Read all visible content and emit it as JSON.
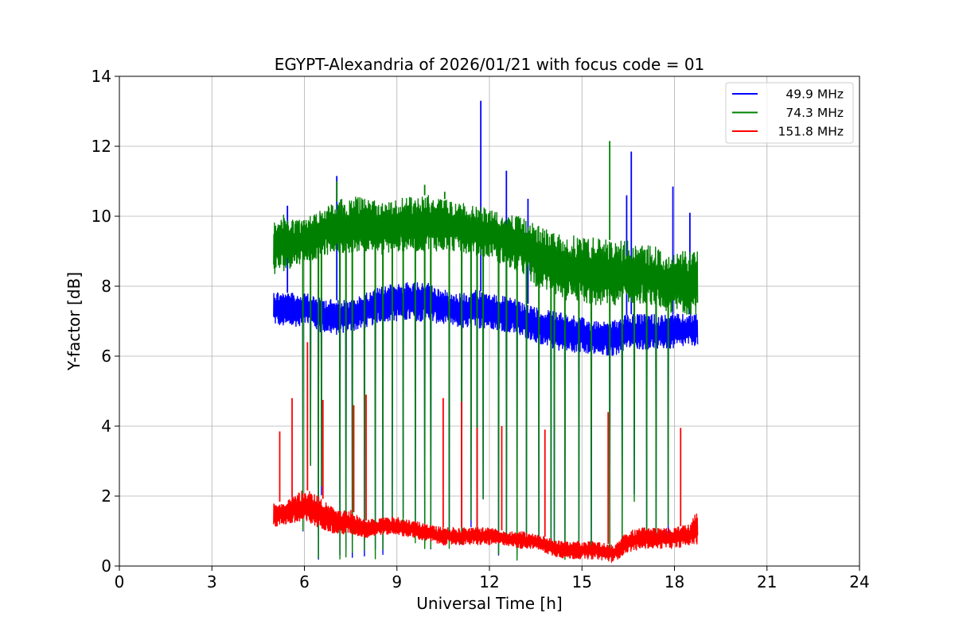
{
  "chart_data": {
    "type": "line",
    "title": "EGYPT-Alexandria of 2026/01/21 with focus code = 01",
    "xlabel": "Universal Time [h]",
    "ylabel": "Y-factor [dB]",
    "xlim": [
      0,
      24
    ],
    "ylim": [
      0,
      14
    ],
    "xticks": [
      0,
      3,
      6,
      9,
      12,
      15,
      18,
      21,
      24
    ],
    "xtick_labels": [
      "0",
      "3",
      "6",
      "9",
      "12",
      "15",
      "18",
      "21",
      "24"
    ],
    "yticks": [
      0,
      2,
      4,
      6,
      8,
      10,
      12,
      14
    ],
    "ytick_labels": [
      "0",
      "2",
      "4",
      "6",
      "8",
      "10",
      "12",
      "14"
    ],
    "grid": true,
    "legend_position": "top-right",
    "data_range_hours": [
      5.0,
      18.75
    ],
    "series": [
      {
        "name": "49.9 MHz",
        "color": "#0000ff",
        "x": [
          5.0,
          5.5,
          6.0,
          6.5,
          7.0,
          7.5,
          8.0,
          8.5,
          9.0,
          9.5,
          10.0,
          10.5,
          11.0,
          11.5,
          12.0,
          12.5,
          13.0,
          13.5,
          14.0,
          14.5,
          15.0,
          15.5,
          16.0,
          16.5,
          17.0,
          17.5,
          18.0,
          18.5,
          18.75
        ],
        "low": [
          6.9,
          6.8,
          6.9,
          6.7,
          6.6,
          6.7,
          6.8,
          7.0,
          7.0,
          7.0,
          7.0,
          6.9,
          6.8,
          6.8,
          6.8,
          6.7,
          6.6,
          6.4,
          6.2,
          6.1,
          6.1,
          6.0,
          6.0,
          6.2,
          6.2,
          6.2,
          6.2,
          6.3,
          6.3
        ],
        "high": [
          7.9,
          7.8,
          7.8,
          7.7,
          7.6,
          7.6,
          7.8,
          8.0,
          8.1,
          8.1,
          8.1,
          7.9,
          7.8,
          7.9,
          7.8,
          7.7,
          7.6,
          7.4,
          7.3,
          7.2,
          7.1,
          7.0,
          7.0,
          7.2,
          7.2,
          7.2,
          7.2,
          7.2,
          7.3
        ],
        "spikes": [
          [
            5.45,
            10.3
          ],
          [
            7.05,
            11.15
          ],
          [
            11.72,
            13.3
          ],
          [
            12.55,
            11.3
          ],
          [
            13.25,
            10.5
          ],
          [
            16.45,
            10.6
          ],
          [
            16.6,
            11.85
          ],
          [
            17.95,
            10.85
          ],
          [
            18.5,
            10.1
          ]
        ]
      },
      {
        "name": "74.3 MHz",
        "color": "#008000",
        "x": [
          5.0,
          5.5,
          6.0,
          6.5,
          7.0,
          7.5,
          8.0,
          8.5,
          9.0,
          9.5,
          10.0,
          10.5,
          11.0,
          11.5,
          12.0,
          12.5,
          13.0,
          13.5,
          14.0,
          14.5,
          15.0,
          15.5,
          16.0,
          16.5,
          17.0,
          17.5,
          18.0,
          18.5,
          18.75
        ],
        "low": [
          8.3,
          8.5,
          8.7,
          8.8,
          9.0,
          8.9,
          9.0,
          8.9,
          9.0,
          9.0,
          9.0,
          9.0,
          9.0,
          8.9,
          8.8,
          8.6,
          8.4,
          8.0,
          7.8,
          7.6,
          7.5,
          7.4,
          7.4,
          7.5,
          7.5,
          7.3,
          7.2,
          7.2,
          7.2
        ],
        "high": [
          10.1,
          10.0,
          9.9,
          10.2,
          10.4,
          10.6,
          10.5,
          10.4,
          10.5,
          10.6,
          10.6,
          10.5,
          10.4,
          10.3,
          10.2,
          10.1,
          10.0,
          9.8,
          9.6,
          9.5,
          9.4,
          9.4,
          9.3,
          9.3,
          9.2,
          9.1,
          9.0,
          9.0,
          9.0
        ],
        "spikes": [
          [
            15.9,
            12.15
          ],
          [
            7.05,
            11.0
          ],
          [
            9.9,
            10.9
          ],
          [
            10.55,
            10.7
          ]
        ]
      },
      {
        "name": "151.8 MHz",
        "color": "#ff0000",
        "x": [
          5.0,
          5.5,
          6.0,
          6.5,
          7.0,
          7.5,
          8.0,
          8.5,
          9.0,
          9.5,
          10.0,
          10.5,
          11.0,
          11.5,
          12.0,
          12.5,
          13.0,
          13.5,
          14.0,
          14.5,
          15.0,
          15.5,
          16.0,
          16.5,
          17.0,
          17.5,
          18.0,
          18.5,
          18.75
        ],
        "low": [
          1.1,
          1.2,
          1.2,
          1.1,
          0.9,
          0.9,
          0.8,
          0.9,
          0.9,
          0.8,
          0.7,
          0.6,
          0.6,
          0.6,
          0.6,
          0.6,
          0.5,
          0.5,
          0.3,
          0.2,
          0.2,
          0.2,
          0.1,
          0.4,
          0.5,
          0.5,
          0.5,
          0.6,
          0.6
        ],
        "high": [
          1.8,
          1.9,
          2.2,
          2.0,
          1.6,
          1.6,
          1.3,
          1.4,
          1.4,
          1.3,
          1.2,
          1.1,
          1.1,
          1.1,
          1.1,
          1.0,
          1.0,
          0.9,
          0.8,
          0.7,
          0.7,
          0.7,
          0.6,
          1.0,
          1.1,
          1.1,
          1.1,
          1.2,
          1.6
        ],
        "spikes": [
          [
            5.2,
            3.85
          ],
          [
            5.6,
            4.8
          ],
          [
            6.1,
            6.4
          ],
          [
            6.6,
            4.75
          ],
          [
            7.6,
            4.6
          ],
          [
            8.0,
            4.9
          ],
          [
            10.5,
            4.8
          ],
          [
            11.1,
            4.7
          ],
          [
            11.6,
            3.95
          ],
          [
            12.4,
            4.0
          ],
          [
            13.8,
            3.9
          ],
          [
            15.85,
            4.4
          ],
          [
            18.2,
            3.95
          ]
        ]
      }
    ],
    "dropouts": [
      {
        "x": 5.95,
        "min": 0.8
      },
      {
        "x": 6.2,
        "min": 2.8
      },
      {
        "x": 6.45,
        "min": 0.1
      },
      {
        "x": 6.55,
        "min": 2.0
      },
      {
        "x": 7.15,
        "min": 0.1
      },
      {
        "x": 7.35,
        "min": 0.2
      },
      {
        "x": 7.55,
        "min": 0.1
      },
      {
        "x": 7.95,
        "min": 0.2
      },
      {
        "x": 8.3,
        "min": 0.2
      },
      {
        "x": 8.55,
        "min": 0.3
      },
      {
        "x": 8.85,
        "min": 1.0
      },
      {
        "x": 9.2,
        "min": 1.1
      },
      {
        "x": 9.6,
        "min": 0.6
      },
      {
        "x": 9.9,
        "min": 0.4
      },
      {
        "x": 10.1,
        "min": 0.3
      },
      {
        "x": 10.7,
        "min": 0.4
      },
      {
        "x": 11.1,
        "min": 0.5
      },
      {
        "x": 11.4,
        "min": 1.1
      },
      {
        "x": 11.6,
        "min": 0.5
      },
      {
        "x": 11.8,
        "min": 1.8
      },
      {
        "x": 12.3,
        "min": 0.3
      },
      {
        "x": 12.55,
        "min": 0.5
      },
      {
        "x": 12.9,
        "min": 0.1
      },
      {
        "x": 13.2,
        "min": 0.4
      },
      {
        "x": 13.6,
        "min": 0.5
      },
      {
        "x": 14.0,
        "min": 0.4
      },
      {
        "x": 14.1,
        "min": 0.3
      },
      {
        "x": 14.45,
        "min": 0.1
      },
      {
        "x": 14.9,
        "min": 0.4
      },
      {
        "x": 15.3,
        "min": 0.3
      },
      {
        "x": 15.9,
        "min": 0.2
      },
      {
        "x": 16.3,
        "min": 0.6
      },
      {
        "x": 16.7,
        "min": 1.8
      },
      {
        "x": 17.1,
        "min": 0.7
      },
      {
        "x": 17.4,
        "min": 0.8
      },
      {
        "x": 17.8,
        "min": 0.9
      }
    ]
  }
}
